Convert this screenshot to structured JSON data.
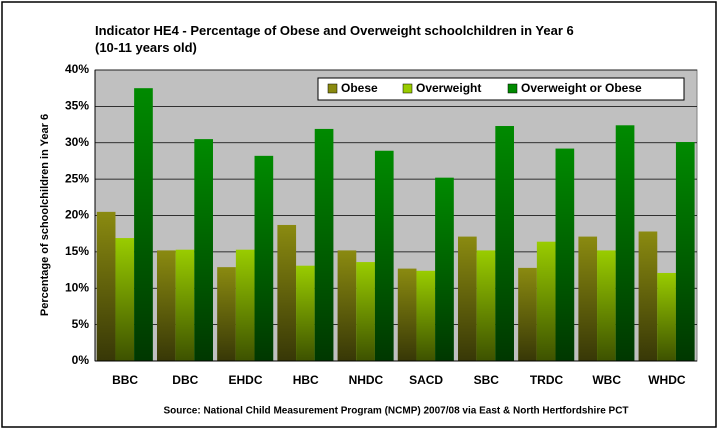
{
  "chart_data": {
    "type": "bar",
    "title": "Indicator HE4 - Percentage of Obese and Overweight schoolchildren in Year 6 (10-11 years old)",
    "ylabel": "Percentage of schoolchildren in Year 6",
    "source": "Source: National Child Measurement Program (NCMP) 2007/08 via East & North Hertfordshire PCT",
    "categories": [
      "BBC",
      "DBC",
      "EHDC",
      "HBC",
      "NHDC",
      "SACD",
      "SBC",
      "TRDC",
      "WBC",
      "WHDC"
    ],
    "series": [
      {
        "name": "Obese",
        "color": "#8a8a10",
        "values": [
          20.5,
          15.2,
          12.9,
          18.7,
          15.2,
          12.7,
          17.1,
          12.8,
          17.1,
          17.8
        ]
      },
      {
        "name": "Overweight",
        "color": "#99cc00",
        "values": [
          16.9,
          15.3,
          15.3,
          13.1,
          13.6,
          12.4,
          15.2,
          16.4,
          15.2,
          12.1
        ]
      },
      {
        "name": "Overweight or Obese",
        "color": "#008a00",
        "values": [
          37.5,
          30.5,
          28.2,
          31.9,
          28.9,
          25.2,
          32.3,
          29.2,
          32.4,
          30.1
        ]
      }
    ],
    "ylim": [
      0,
      40
    ],
    "yticks": [
      {
        "value": 0,
        "label": "0%"
      },
      {
        "value": 5,
        "label": "5%"
      },
      {
        "value": 10,
        "label": "10%"
      },
      {
        "value": 15,
        "label": "15%"
      },
      {
        "value": 20,
        "label": "20%"
      },
      {
        "value": 25,
        "label": "25%"
      },
      {
        "value": 30,
        "label": "30%"
      },
      {
        "value": 35,
        "label": "35%"
      },
      {
        "value": 40,
        "label": "40%"
      }
    ],
    "grid": true,
    "legend": "top-right"
  }
}
